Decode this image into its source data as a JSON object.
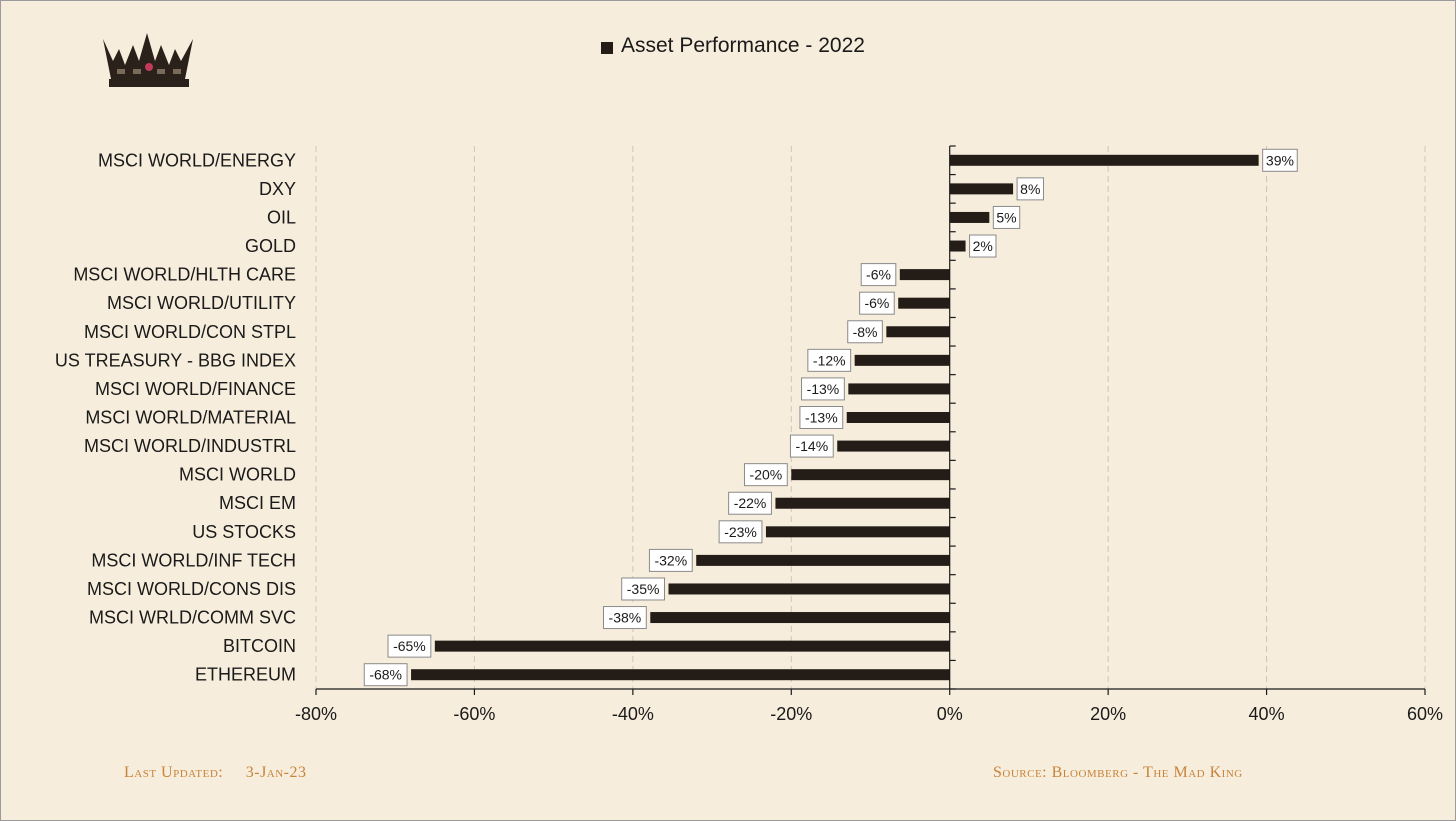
{
  "chart_data": {
    "type": "bar",
    "orientation": "horizontal",
    "title": "Asset Performance - 2022",
    "legend": {
      "label": "Asset Performance - 2022",
      "placement": "top-center"
    },
    "categories": [
      "MSCI WORLD/ENERGY",
      "DXY",
      "OIL",
      "GOLD",
      "MSCI WORLD/HLTH CARE",
      "MSCI WORLD/UTILITY",
      "MSCI WORLD/CON STPL",
      "US TREASURY - BBG INDEX",
      "MSCI WORLD/FINANCE",
      "MSCI WORLD/MATERIAL",
      "MSCI WORLD/INDUSTRL",
      "MSCI WORLD",
      "MSCI EM",
      "US STOCKS",
      "MSCI WORLD/INF TECH",
      "MSCI WORLD/CONS DIS",
      "MSCI WRLD/COMM SVC",
      "BITCOIN",
      "ETHEREUM"
    ],
    "values": [
      39,
      8,
      5,
      2,
      -6.3,
      -6.5,
      -8,
      -12,
      -12.8,
      -13,
      -14.2,
      -20,
      -22,
      -23.2,
      -32,
      -35.5,
      -37.8,
      -65,
      -68
    ],
    "data_labels": [
      "39%",
      "8%",
      "5%",
      "2%",
      "-6%",
      "-6%",
      "-8%",
      "-12%",
      "-13%",
      "-13%",
      "-14%",
      "-20%",
      "-22%",
      "-23%",
      "-32%",
      "-35%",
      "-38%",
      "-65%",
      "-68%"
    ],
    "xlim": [
      -80,
      60
    ],
    "xticks": [
      -80,
      -60,
      -40,
      -20,
      0,
      20,
      40,
      60
    ],
    "xtick_labels": [
      "-80%",
      "-60%",
      "-40%",
      "-20%",
      "0%",
      "20%",
      "40%",
      "60%"
    ],
    "grid": "vertical-dashed",
    "bar_color": "#241d17"
  },
  "footer": {
    "last_updated_label": "Last Updated:",
    "last_updated_value": "3-Jan-23",
    "source": "Source: Bloomberg  - The Mad King"
  },
  "logo": {
    "icon": "crown-icon"
  },
  "colors": {
    "background": "#f7eddc",
    "footer_text": "#c8843a"
  }
}
